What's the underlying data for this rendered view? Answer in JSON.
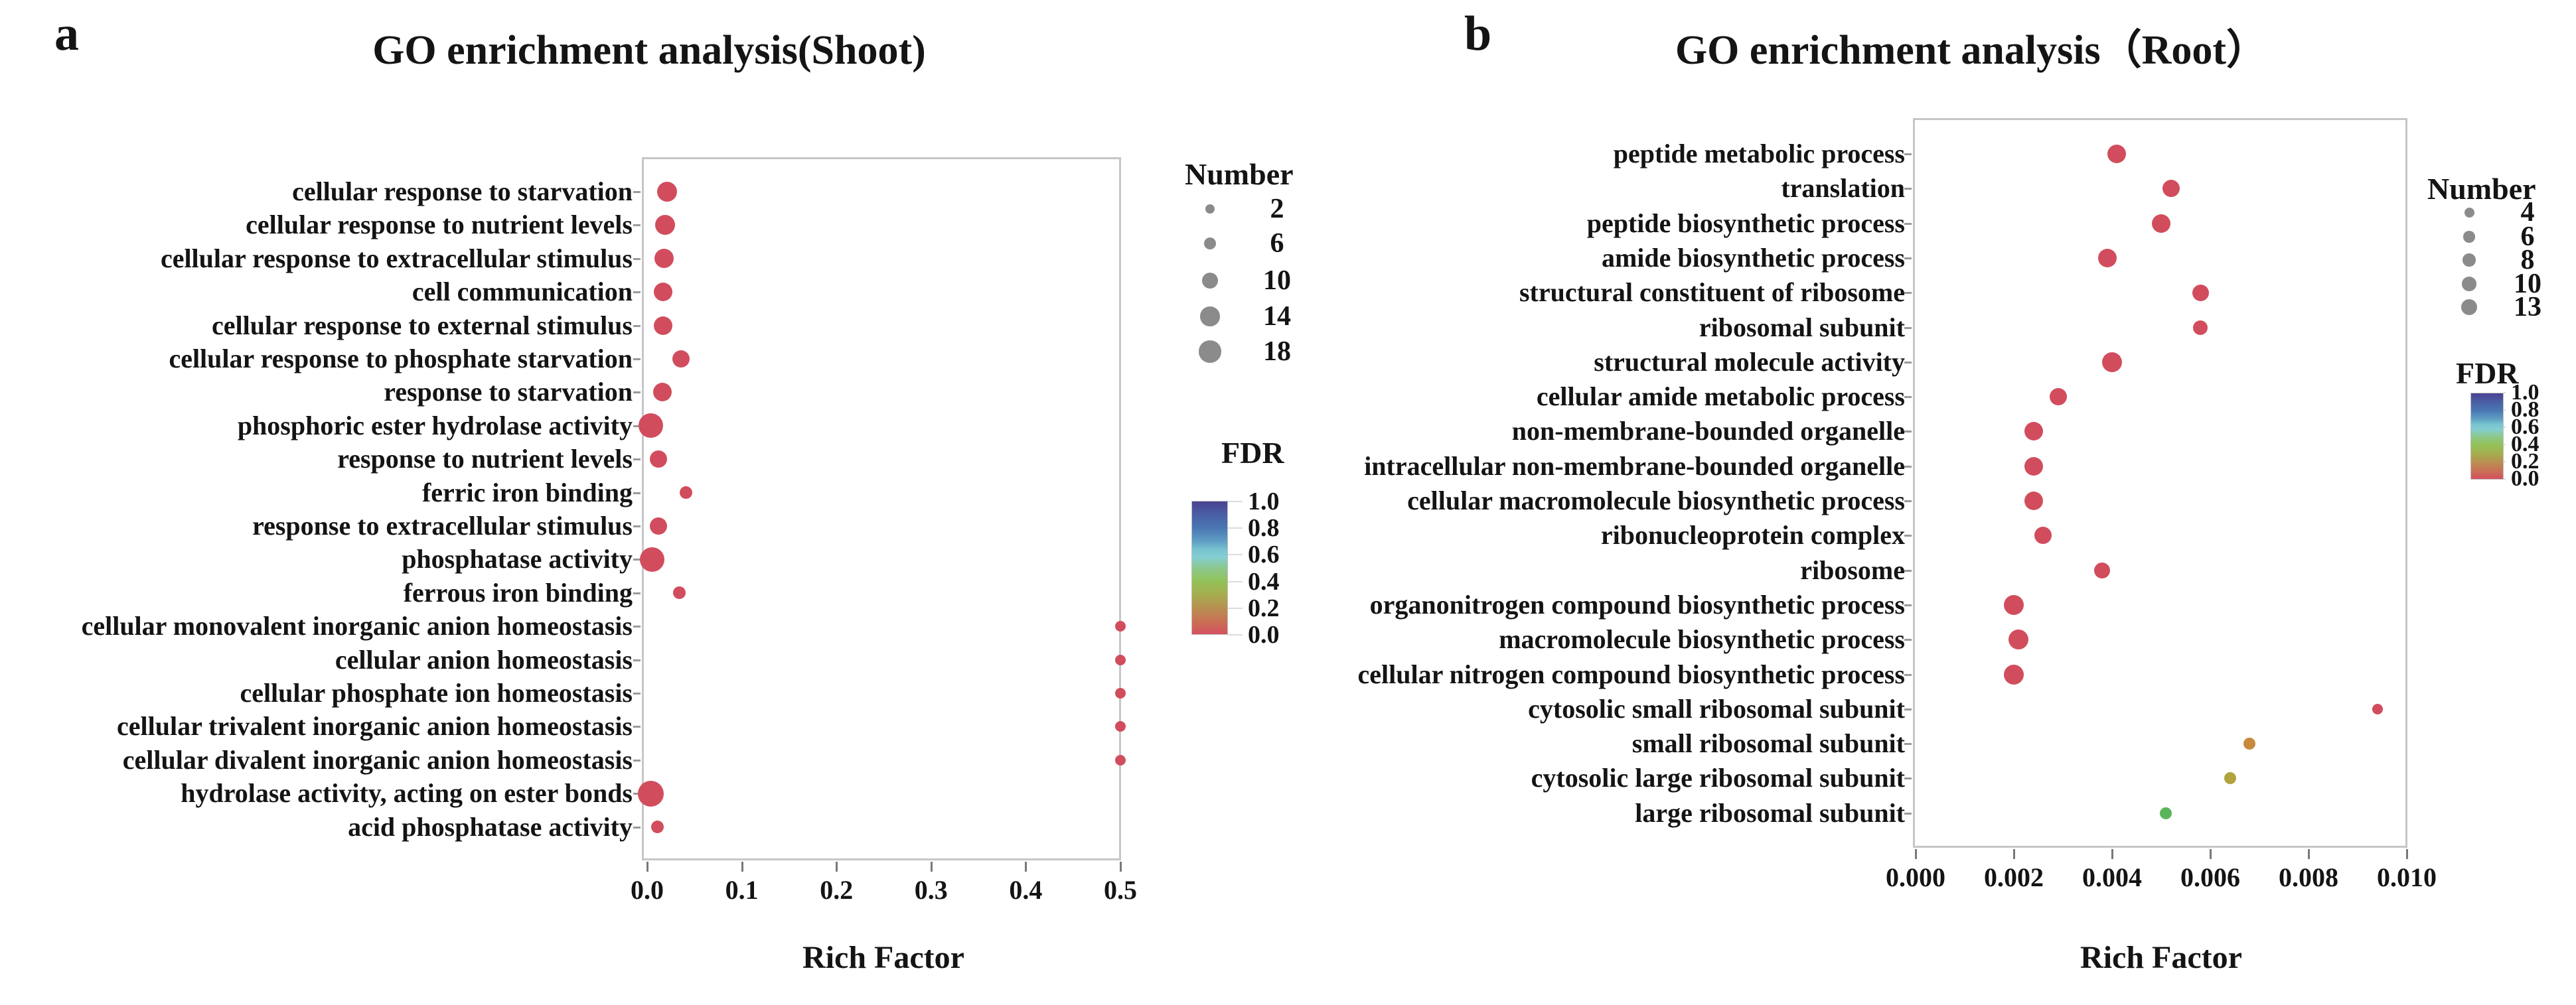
{
  "figure": {
    "background": "#ffffff",
    "text_color": "#141414"
  },
  "chart_data": [
    {
      "type": "scatter",
      "panel_letter": "a",
      "title": "GO enrichment analysis(Shoot)",
      "xlabel": "Rich Factor",
      "xlim": [
        0.0,
        0.5
      ],
      "grid": false,
      "legend_position": "right",
      "point_color_default": "#d14d5d",
      "x_ticks": [
        {
          "label": "0.0",
          "value": 0.0
        },
        {
          "label": "0.1",
          "value": 0.1
        },
        {
          "label": "0.2",
          "value": 0.2
        },
        {
          "label": "0.3",
          "value": 0.3
        },
        {
          "label": "0.4",
          "value": 0.4
        },
        {
          "label": "0.5",
          "value": 0.5
        }
      ],
      "categories": [
        "cellular response to starvation",
        "cellular response to nutrient levels",
        "cellular response to extracellular stimulus",
        "cell communication",
        "cellular response to external stimulus",
        "cellular response to phosphate starvation",
        "response to starvation",
        "phosphoric ester hydrolase activity",
        "response to nutrient levels",
        "ferric iron binding",
        "response to extracellular stimulus",
        "phosphatase activity",
        "ferrous iron binding",
        "cellular monovalent inorganic anion homeostasis",
        "cellular anion homeostasis",
        "cellular phosphate ion homeostasis",
        "cellular trivalent inorganic anion homeostasis",
        "cellular divalent inorganic anion homeostasis",
        "hydrolase activity, acting on ester bonds",
        "acid phosphatase activity"
      ],
      "points": [
        {
          "category": "cellular response to starvation",
          "rich_factor": 0.021,
          "number": 12,
          "fdr": 0.02,
          "color": "#d14d5d",
          "r": 15
        },
        {
          "category": "cellular response to nutrient levels",
          "rich_factor": 0.019,
          "number": 12,
          "fdr": 0.02,
          "color": "#d14d5d",
          "r": 15
        },
        {
          "category": "cellular response to extracellular stimulus",
          "rich_factor": 0.018,
          "number": 12,
          "fdr": 0.02,
          "color": "#d14d5d",
          "r": 14.5
        },
        {
          "category": "cell communication",
          "rich_factor": 0.017,
          "number": 11,
          "fdr": 0.02,
          "color": "#d14d5d",
          "r": 14
        },
        {
          "category": "cellular response to external stimulus",
          "rich_factor": 0.017,
          "number": 11,
          "fdr": 0.02,
          "color": "#d14d5d",
          "r": 14
        },
        {
          "category": "cellular response to phosphate starvation",
          "rich_factor": 0.036,
          "number": 10,
          "fdr": 0.02,
          "color": "#d14d5d",
          "r": 13
        },
        {
          "category": "response to starvation",
          "rich_factor": 0.016,
          "number": 11,
          "fdr": 0.02,
          "color": "#d14d5d",
          "r": 14
        },
        {
          "category": "phosphoric ester hydrolase activity",
          "rich_factor": 0.004,
          "number": 18,
          "fdr": 0.02,
          "color": "#d14d5d",
          "r": 18.5
        },
        {
          "category": "response to nutrient levels",
          "rich_factor": 0.012,
          "number": 10,
          "fdr": 0.02,
          "color": "#d14d5d",
          "r": 13
        },
        {
          "category": "ferric iron binding",
          "rich_factor": 0.041,
          "number": 4,
          "fdr": 0.02,
          "color": "#d14d5d",
          "r": 9.5
        },
        {
          "category": "response to extracellular stimulus",
          "rich_factor": 0.012,
          "number": 10,
          "fdr": 0.02,
          "color": "#d14d5d",
          "r": 13
        },
        {
          "category": "phosphatase activity",
          "rich_factor": 0.005,
          "number": 18,
          "fdr": 0.02,
          "color": "#d14d5d",
          "r": 18.5
        },
        {
          "category": "ferrous iron binding",
          "rich_factor": 0.034,
          "number": 4,
          "fdr": 0.02,
          "color": "#d14d5d",
          "r": 9.5
        },
        {
          "category": "cellular monovalent inorganic anion homeostasis",
          "rich_factor": 0.5,
          "number": 2,
          "fdr": 0.02,
          "color": "#d14d5d",
          "r": 8
        },
        {
          "category": "cellular anion homeostasis",
          "rich_factor": 0.5,
          "number": 2,
          "fdr": 0.02,
          "color": "#d14d5d",
          "r": 8
        },
        {
          "category": "cellular phosphate ion homeostasis",
          "rich_factor": 0.5,
          "number": 2,
          "fdr": 0.02,
          "color": "#d14d5d",
          "r": 8
        },
        {
          "category": "cellular trivalent inorganic anion homeostasis",
          "rich_factor": 0.5,
          "number": 2,
          "fdr": 0.02,
          "color": "#d14d5d",
          "r": 8
        },
        {
          "category": "cellular divalent inorganic anion homeostasis",
          "rich_factor": 0.5,
          "number": 2,
          "fdr": 0.02,
          "color": "#d14d5d",
          "r": 8
        },
        {
          "category": "hydrolase activity, acting on ester bonds",
          "rich_factor": 0.004,
          "number": 18,
          "fdr": 0.02,
          "color": "#d14d5d",
          "r": 19.5
        },
        {
          "category": "acid phosphatase activity",
          "rich_factor": 0.011,
          "number": 4,
          "fdr": 0.02,
          "color": "#d14d5d",
          "r": 9.5
        }
      ],
      "size_legend": {
        "title": "Number",
        "entries": [
          {
            "label": "2",
            "r": 7.3
          },
          {
            "label": "6",
            "r": 9.3
          },
          {
            "label": "10",
            "r": 12.3
          },
          {
            "label": "14",
            "r": 14.7
          },
          {
            "label": "18",
            "r": 16.7
          }
        ]
      },
      "color_legend": {
        "title": "FDR",
        "range": [
          0.0,
          1.0
        ],
        "tick_labels": [
          "1.0",
          "0.8",
          "0.6",
          "0.4",
          "0.2",
          "0.0"
        ],
        "gradient": [
          {
            "c": "#4a4291",
            "p": 0
          },
          {
            "c": "#4a5fa5",
            "p": 10
          },
          {
            "c": "#4a77b2",
            "p": 20
          },
          {
            "c": "#5f9fc4",
            "p": 30
          },
          {
            "c": "#77c3cf",
            "p": 36
          },
          {
            "c": "#84ced2",
            "p": 42
          },
          {
            "c": "#8cc88f",
            "p": 50
          },
          {
            "c": "#92c258",
            "p": 60
          },
          {
            "c": "#a5ae4f",
            "p": 70
          },
          {
            "c": "#b79050",
            "p": 80
          },
          {
            "c": "#c97255",
            "p": 90
          },
          {
            "c": "#d4505e",
            "p": 100
          }
        ]
      }
    },
    {
      "type": "scatter",
      "panel_letter": "b",
      "title": "GO enrichment analysis（Root）",
      "xlabel": "Rich Factor",
      "xlim": [
        0.0,
        0.01
      ],
      "grid": false,
      "legend_position": "right",
      "point_color_default": "#d14d5d",
      "x_ticks": [
        {
          "label": "0.000",
          "value": 0.0
        },
        {
          "label": "0.002",
          "value": 0.002
        },
        {
          "label": "0.004",
          "value": 0.004
        },
        {
          "label": "0.006",
          "value": 0.006
        },
        {
          "label": "0.008",
          "value": 0.008
        },
        {
          "label": "0.010",
          "value": 0.01
        }
      ],
      "categories": [
        "peptide metabolic process",
        "translation",
        "peptide biosynthetic process",
        "amide biosynthetic process",
        "structural constituent of ribosome",
        "ribosomal subunit",
        "structural molecule activity",
        "cellular amide metabolic process",
        "non-membrane-bounded organelle",
        "intracellular non-membrane-bounded organelle",
        "cellular macromolecule biosynthetic process",
        "ribonucleoprotein complex",
        "ribosome",
        "organonitrogen compound biosynthetic process",
        "macromolecule biosynthetic process",
        "cellular nitrogen compound biosynthetic process",
        "cytosolic small ribosomal subunit",
        "small ribosomal subunit",
        "cytosolic large ribosomal subunit",
        "large ribosomal subunit"
      ],
      "points": [
        {
          "category": "peptide metabolic process",
          "rich_factor": 0.0041,
          "number": 12,
          "fdr": 0.02,
          "color": "#d14d5d",
          "r": 14
        },
        {
          "category": "translation",
          "rich_factor": 0.0052,
          "number": 11,
          "fdr": 0.02,
          "color": "#d14d5d",
          "r": 13
        },
        {
          "category": "peptide biosynthetic process",
          "rich_factor": 0.005,
          "number": 12,
          "fdr": 0.02,
          "color": "#d14d5d",
          "r": 14
        },
        {
          "category": "amide biosynthetic process",
          "rich_factor": 0.0039,
          "number": 12,
          "fdr": 0.02,
          "color": "#d14d5d",
          "r": 14
        },
        {
          "category": "structural constituent of ribosome",
          "rich_factor": 0.0058,
          "number": 9,
          "fdr": 0.02,
          "color": "#d14d5d",
          "r": 12.5
        },
        {
          "category": "ribosomal subunit",
          "rich_factor": 0.0058,
          "number": 7,
          "fdr": 0.02,
          "color": "#d14d5d",
          "r": 11
        },
        {
          "category": "structural molecule activity",
          "rich_factor": 0.004,
          "number": 13,
          "fdr": 0.02,
          "color": "#d14d5d",
          "r": 15
        },
        {
          "category": "cellular amide metabolic process",
          "rich_factor": 0.0029,
          "number": 10,
          "fdr": 0.02,
          "color": "#d14d5d",
          "r": 13
        },
        {
          "category": "non-membrane-bounded organelle",
          "rich_factor": 0.0024,
          "number": 12,
          "fdr": 0.02,
          "color": "#d14d5d",
          "r": 14
        },
        {
          "category": "intracellular non-membrane-bounded organelle",
          "rich_factor": 0.0024,
          "number": 12,
          "fdr": 0.02,
          "color": "#d14d5d",
          "r": 14
        },
        {
          "category": "cellular macromolecule biosynthetic process",
          "rich_factor": 0.0024,
          "number": 12,
          "fdr": 0.02,
          "color": "#d14d5d",
          "r": 14
        },
        {
          "category": "ribonucleoprotein complex",
          "rich_factor": 0.0026,
          "number": 10,
          "fdr": 0.02,
          "color": "#d14d5d",
          "r": 13
        },
        {
          "category": "ribosome",
          "rich_factor": 0.0038,
          "number": 8,
          "fdr": 0.02,
          "color": "#d14d5d",
          "r": 12
        },
        {
          "category": "organonitrogen compound biosynthetic process",
          "rich_factor": 0.002,
          "number": 13,
          "fdr": 0.02,
          "color": "#d14d5d",
          "r": 15
        },
        {
          "category": "macromolecule biosynthetic process",
          "rich_factor": 0.0021,
          "number": 13,
          "fdr": 0.02,
          "color": "#d14d5d",
          "r": 15
        },
        {
          "category": "cellular nitrogen compound biosynthetic process",
          "rich_factor": 0.002,
          "number": 13,
          "fdr": 0.02,
          "color": "#d14d5d",
          "r": 15
        },
        {
          "category": "cytosolic small ribosomal subunit",
          "rich_factor": 0.0094,
          "number": 4,
          "fdr": 0.02,
          "color": "#d14d5d",
          "r": 8
        },
        {
          "category": "small ribosomal subunit",
          "rich_factor": 0.0068,
          "number": 4,
          "fdr": 0.2,
          "color": "#c9893d",
          "r": 9
        },
        {
          "category": "cytosolic large ribosomal subunit",
          "rich_factor": 0.0064,
          "number": 4,
          "fdr": 0.3,
          "color": "#b2a23b",
          "r": 9
        },
        {
          "category": "large ribosomal subunit",
          "rich_factor": 0.0051,
          "number": 4,
          "fdr": 0.45,
          "color": "#5ab55a",
          "r": 9
        }
      ],
      "size_legend": {
        "title": "Number",
        "entries": [
          {
            "label": "4",
            "r": 7.5
          },
          {
            "label": "6",
            "r": 8.7
          },
          {
            "label": "8",
            "r": 9.7
          },
          {
            "label": "10",
            "r": 10.8
          },
          {
            "label": "13",
            "r": 12
          }
        ]
      },
      "color_legend": {
        "title": "FDR",
        "range": [
          0.0,
          1.0
        ],
        "tick_labels": [
          "1.0",
          "0.8",
          "0.6",
          "0.4",
          "0.2",
          "0.0"
        ],
        "gradient": [
          {
            "c": "#4a4291",
            "p": 0
          },
          {
            "c": "#4a5fa5",
            "p": 10
          },
          {
            "c": "#4a77b2",
            "p": 20
          },
          {
            "c": "#5f9fc4",
            "p": 30
          },
          {
            "c": "#77c3cf",
            "p": 36
          },
          {
            "c": "#84ced2",
            "p": 42
          },
          {
            "c": "#8cc88f",
            "p": 50
          },
          {
            "c": "#92c258",
            "p": 60
          },
          {
            "c": "#a5ae4f",
            "p": 70
          },
          {
            "c": "#b79050",
            "p": 80
          },
          {
            "c": "#c97255",
            "p": 90
          },
          {
            "c": "#d4505e",
            "p": 100
          }
        ]
      }
    }
  ]
}
